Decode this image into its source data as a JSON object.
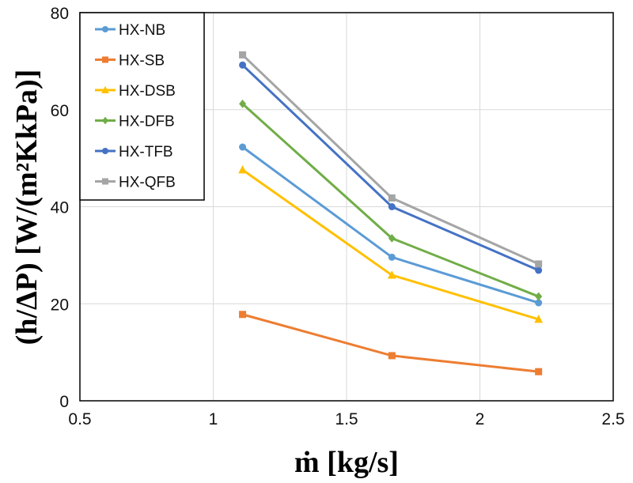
{
  "chart_data": {
    "type": "line",
    "xlabel": "ṁ [kg/s]",
    "ylabel": "(h/ΔP) [W/(m²KkPa)]",
    "xlim": [
      0.5,
      2.5
    ],
    "ylim": [
      0,
      80
    ],
    "xticks": [
      "0.5",
      "1",
      "1.5",
      "2",
      "2.5"
    ],
    "yticks": [
      "0",
      "20",
      "40",
      "60",
      "80"
    ],
    "grid": true,
    "legend_placement": "top-left",
    "x": [
      1.11,
      1.67,
      2.22
    ],
    "series": [
      {
        "name": "HX-NB",
        "values": [
          52.3,
          29.6,
          20.2
        ],
        "color": "#5b9bd5",
        "marker": "circle"
      },
      {
        "name": "HX-SB",
        "values": [
          17.8,
          9.3,
          6.0
        ],
        "color": "#ed7d31",
        "marker": "square"
      },
      {
        "name": "HX-DSB",
        "values": [
          47.6,
          25.9,
          16.8
        ],
        "color": "#ffc000",
        "marker": "triangle"
      },
      {
        "name": "HX-DFB",
        "values": [
          61.2,
          33.5,
          21.5
        ],
        "color": "#70ad47",
        "marker": "diamond"
      },
      {
        "name": "HX-TFB",
        "values": [
          69.2,
          40.0,
          26.9
        ],
        "color": "#4472c4",
        "marker": "circle"
      },
      {
        "name": "HX-QFB",
        "values": [
          71.3,
          41.8,
          28.2
        ],
        "color": "#a5a5a5",
        "marker": "square"
      }
    ]
  }
}
